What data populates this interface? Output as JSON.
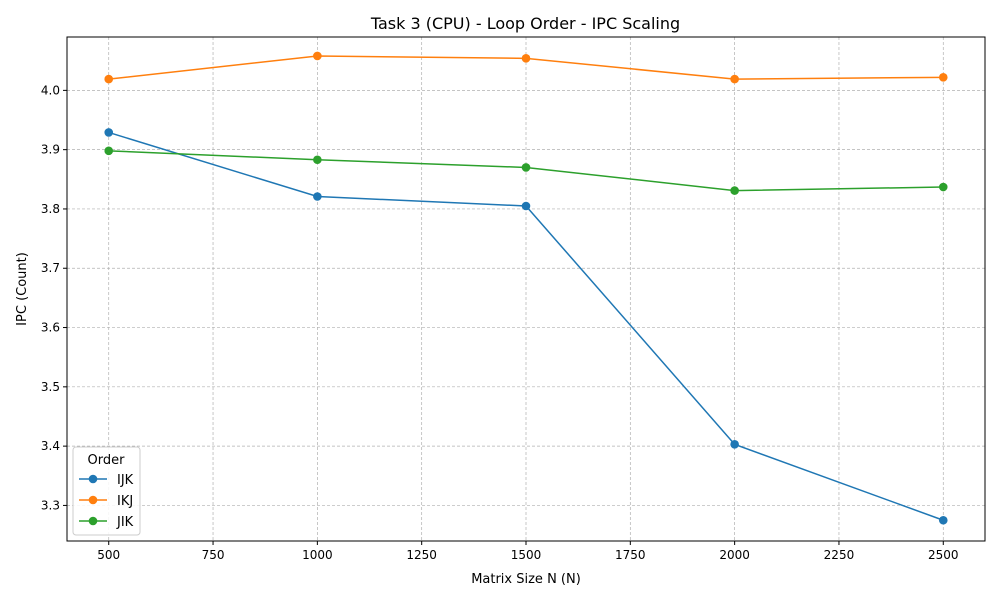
{
  "chart_data": {
    "type": "line",
    "title": "Task 3 (CPU) - Loop Order - IPC Scaling",
    "xlabel": "Matrix Size N (N)",
    "ylabel": "IPC (Count)",
    "x": [
      500,
      1000,
      1500,
      2000,
      2500
    ],
    "xlim": [
      400,
      2600
    ],
    "ylim": [
      3.24,
      4.09
    ],
    "xticks": [
      500,
      750,
      1000,
      1250,
      1500,
      1750,
      2000,
      2250,
      2500
    ],
    "yticks": [
      3.3,
      3.4,
      3.5,
      3.6,
      3.7,
      3.8,
      3.9,
      4.0
    ],
    "grid": true,
    "legend": {
      "title": "Order",
      "position": "lower-left"
    },
    "series": [
      {
        "name": "IJK",
        "color": "#1f77b4",
        "values": [
          3.929,
          3.821,
          3.805,
          3.403,
          3.275
        ]
      },
      {
        "name": "IKJ",
        "color": "#ff7f0e",
        "values": [
          4.019,
          4.058,
          4.054,
          4.019,
          4.022
        ]
      },
      {
        "name": "JIK",
        "color": "#2ca02c",
        "values": [
          3.898,
          3.883,
          3.87,
          3.831,
          3.837
        ]
      }
    ]
  }
}
